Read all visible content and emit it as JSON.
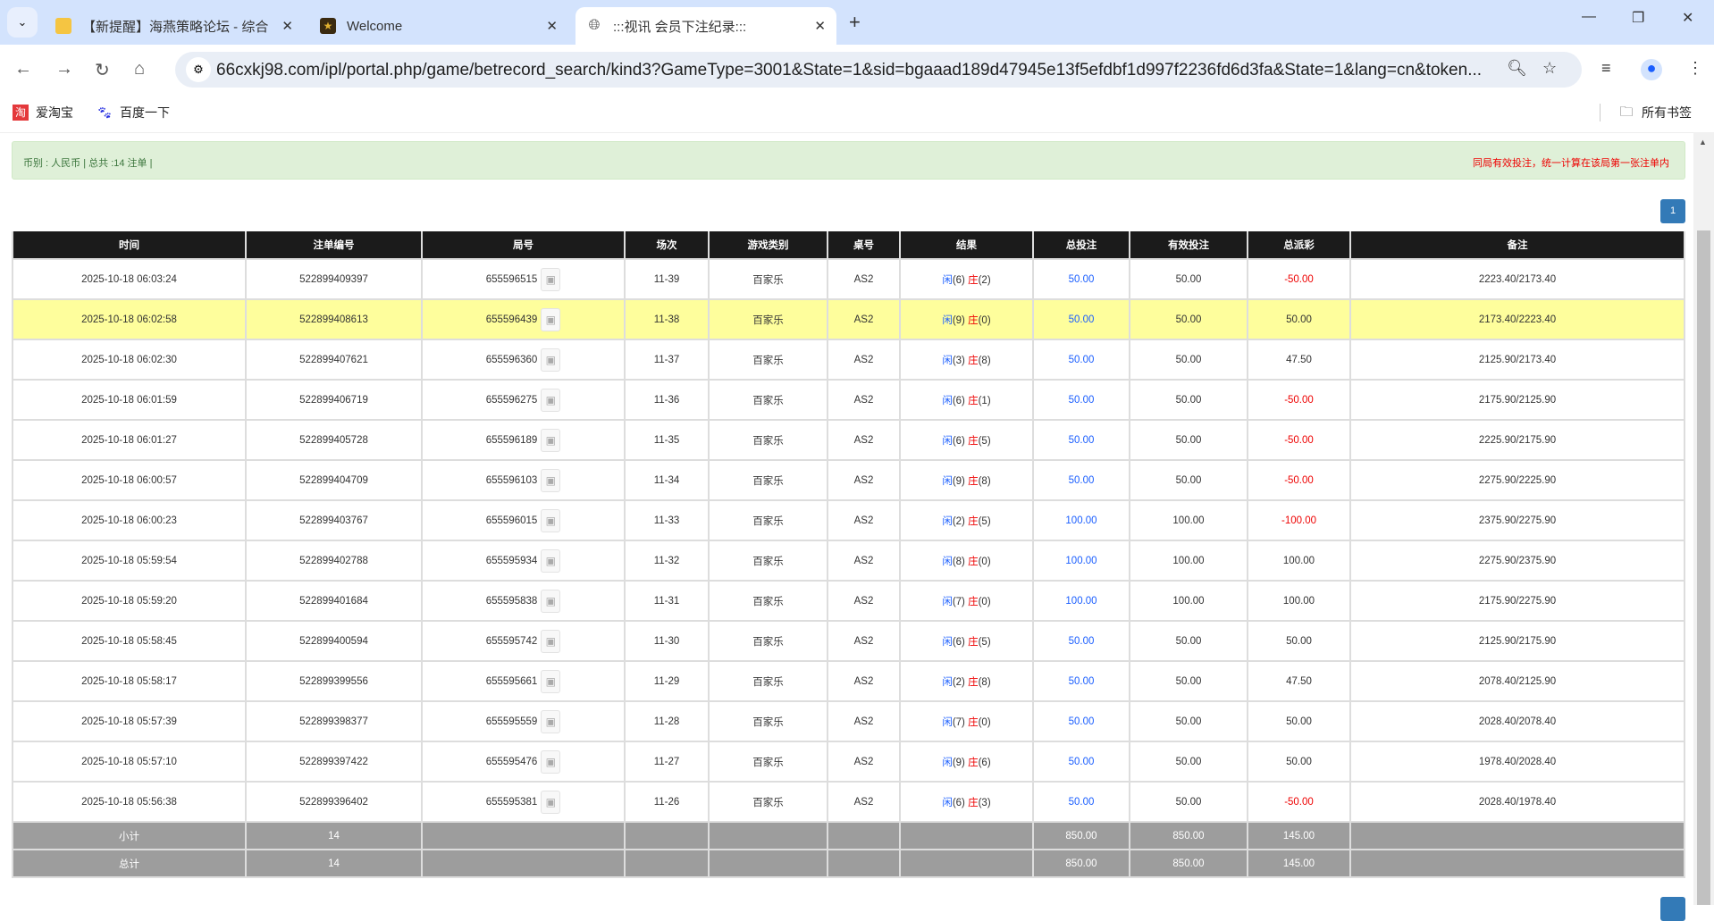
{
  "browser": {
    "tabs": [
      {
        "title": "【新提醒】海燕策略论坛 - 综合"
      },
      {
        "title": "Welcome"
      },
      {
        "title": ":::视讯 会员下注纪录:::"
      }
    ],
    "url": "66cxkj98.com/ipl/portal.php/game/betrecord_search/kind3?GameType=3001&State=1&sid=bgaaad189d47945e13f5efdbf1d997f2236fd6d3fa&State=1&lang=cn&token...",
    "bookmarks": [
      {
        "label": "爱淘宝"
      },
      {
        "label": "百度一下"
      }
    ],
    "all_bookmarks": "所有书签"
  },
  "info": {
    "left": "币别 : 人民币 | 总共 :14 注单 |",
    "right": "同局有效投注，统一计算在该局第一张注单内"
  },
  "pagination": {
    "current": "1"
  },
  "colors": {
    "accent": "#337ab7",
    "header_bg": "#1b1b1b",
    "highlight": "#fefe9c",
    "positive": "#1a5eff",
    "negative": "#ee0000"
  },
  "table": {
    "headers": [
      "时间",
      "注单编号",
      "局号",
      "场次",
      "游戏类别",
      "桌号",
      "结果",
      "总投注",
      "有效投注",
      "总派彩",
      "备注"
    ],
    "player_label": "闲",
    "banker_label": "庄",
    "rows": [
      {
        "time": "2025-10-18 06:03:24",
        "id": "522899409397",
        "round": "655596515",
        "shoe": "11-39",
        "game": "百家乐",
        "table": "AS2",
        "p": "(6)",
        "b": "(2)",
        "bet": "50.00",
        "valid": "50.00",
        "payout": "-50.00",
        "note": "2223.40/2173.40"
      },
      {
        "time": "2025-10-18 06:02:58",
        "id": "522899408613",
        "round": "655596439",
        "shoe": "11-38",
        "game": "百家乐",
        "table": "AS2",
        "p": "(9)",
        "b": "(0)",
        "bet": "50.00",
        "valid": "50.00",
        "payout": "50.00",
        "note": "2173.40/2223.40",
        "highlight": true
      },
      {
        "time": "2025-10-18 06:02:30",
        "id": "522899407621",
        "round": "655596360",
        "shoe": "11-37",
        "game": "百家乐",
        "table": "AS2",
        "p": "(3)",
        "b": "(8)",
        "bet": "50.00",
        "valid": "50.00",
        "payout": "47.50",
        "note": "2125.90/2173.40"
      },
      {
        "time": "2025-10-18 06:01:59",
        "id": "522899406719",
        "round": "655596275",
        "shoe": "11-36",
        "game": "百家乐",
        "table": "AS2",
        "p": "(6)",
        "b": "(1)",
        "bet": "50.00",
        "valid": "50.00",
        "payout": "-50.00",
        "note": "2175.90/2125.90"
      },
      {
        "time": "2025-10-18 06:01:27",
        "id": "522899405728",
        "round": "655596189",
        "shoe": "11-35",
        "game": "百家乐",
        "table": "AS2",
        "p": "(6)",
        "b": "(5)",
        "bet": "50.00",
        "valid": "50.00",
        "payout": "-50.00",
        "note": "2225.90/2175.90"
      },
      {
        "time": "2025-10-18 06:00:57",
        "id": "522899404709",
        "round": "655596103",
        "shoe": "11-34",
        "game": "百家乐",
        "table": "AS2",
        "p": "(9)",
        "b": "(8)",
        "bet": "50.00",
        "valid": "50.00",
        "payout": "-50.00",
        "note": "2275.90/2225.90"
      },
      {
        "time": "2025-10-18 06:00:23",
        "id": "522899403767",
        "round": "655596015",
        "shoe": "11-33",
        "game": "百家乐",
        "table": "AS2",
        "p": "(2)",
        "b": "(5)",
        "bet": "100.00",
        "valid": "100.00",
        "payout": "-100.00",
        "note": "2375.90/2275.90"
      },
      {
        "time": "2025-10-18 05:59:54",
        "id": "522899402788",
        "round": "655595934",
        "shoe": "11-32",
        "game": "百家乐",
        "table": "AS2",
        "p": "(8)",
        "b": "(0)",
        "bet": "100.00",
        "valid": "100.00",
        "payout": "100.00",
        "note": "2275.90/2375.90"
      },
      {
        "time": "2025-10-18 05:59:20",
        "id": "522899401684",
        "round": "655595838",
        "shoe": "11-31",
        "game": "百家乐",
        "table": "AS2",
        "p": "(7)",
        "b": "(0)",
        "bet": "100.00",
        "valid": "100.00",
        "payout": "100.00",
        "note": "2175.90/2275.90"
      },
      {
        "time": "2025-10-18 05:58:45",
        "id": "522899400594",
        "round": "655595742",
        "shoe": "11-30",
        "game": "百家乐",
        "table": "AS2",
        "p": "(6)",
        "b": "(5)",
        "bet": "50.00",
        "valid": "50.00",
        "payout": "50.00",
        "note": "2125.90/2175.90"
      },
      {
        "time": "2025-10-18 05:58:17",
        "id": "522899399556",
        "round": "655595661",
        "shoe": "11-29",
        "game": "百家乐",
        "table": "AS2",
        "p": "(2)",
        "b": "(8)",
        "bet": "50.00",
        "valid": "50.00",
        "payout": "47.50",
        "note": "2078.40/2125.90"
      },
      {
        "time": "2025-10-18 05:57:39",
        "id": "522899398377",
        "round": "655595559",
        "shoe": "11-28",
        "game": "百家乐",
        "table": "AS2",
        "p": "(7)",
        "b": "(0)",
        "bet": "50.00",
        "valid": "50.00",
        "payout": "50.00",
        "note": "2028.40/2078.40"
      },
      {
        "time": "2025-10-18 05:57:10",
        "id": "522899397422",
        "round": "655595476",
        "shoe": "11-27",
        "game": "百家乐",
        "table": "AS2",
        "p": "(9)",
        "b": "(6)",
        "bet": "50.00",
        "valid": "50.00",
        "payout": "50.00",
        "note": "1978.40/2028.40"
      },
      {
        "time": "2025-10-18 05:56:38",
        "id": "522899396402",
        "round": "655595381",
        "shoe": "11-26",
        "game": "百家乐",
        "table": "AS2",
        "p": "(6)",
        "b": "(3)",
        "bet": "50.00",
        "valid": "50.00",
        "payout": "-50.00",
        "note": "2028.40/1978.40"
      }
    ],
    "summary": [
      {
        "label": "小计",
        "count": "14",
        "bet": "850.00",
        "valid": "850.00",
        "payout": "145.00"
      },
      {
        "label": "总计",
        "count": "14",
        "bet": "850.00",
        "valid": "850.00",
        "payout": "145.00"
      }
    ]
  }
}
